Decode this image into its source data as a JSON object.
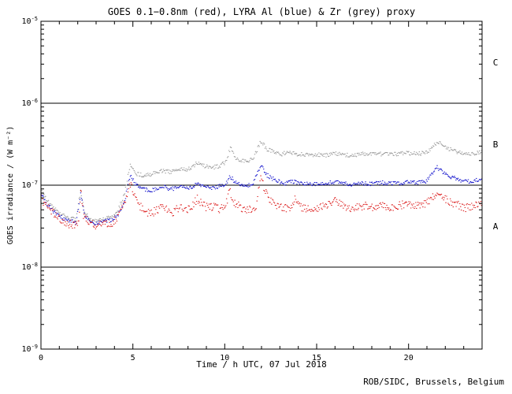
{
  "footer": {
    "credit": "ROB/SIDC, Brussels, Belgium"
  },
  "chart_data": {
    "type": "scatter",
    "title": "GOES 0.1−0.8nm (red), LYRA Al (blue) & Zr (grey) proxy",
    "xlabel": "Time / h UTC, 07 Jul 2018",
    "ylabel": "GOES irradiance / (W m⁻²)",
    "xlim": [
      0,
      24
    ],
    "ylim": [
      1e-09,
      1e-05
    ],
    "x_ticks": [
      0,
      5,
      10,
      15,
      20
    ],
    "y_tick_exponents": [
      -5,
      -6,
      -7,
      -8,
      -9
    ],
    "grid": "off",
    "legend": "in-title",
    "flare_class_boundaries": [
      1e-06,
      1e-07,
      1e-08
    ],
    "flare_classes": [
      {
        "label": "C",
        "range": [
          1e-06,
          1e-05
        ]
      },
      {
        "label": "B",
        "range": [
          1e-07,
          1e-06
        ]
      },
      {
        "label": "A",
        "range": [
          1e-08,
          1e-07
        ]
      }
    ],
    "series": [
      {
        "id": "goes-red",
        "name": "GOES 0.1-0.8nm",
        "color": "#dc1c1c",
        "points": [
          [
            0,
            6.8e-08
          ],
          [
            0.4,
            5.2e-08
          ],
          [
            0.9,
            4e-08
          ],
          [
            1.4,
            3.4e-08
          ],
          [
            1.9,
            3.2e-08
          ],
          [
            2.05,
            3.6e-08
          ],
          [
            2.15,
            9.5e-08
          ],
          [
            2.3,
            4.4e-08
          ],
          [
            2.6,
            3.4e-08
          ],
          [
            3.0,
            3.2e-08
          ],
          [
            3.4,
            3.5e-08
          ],
          [
            3.8,
            3.4e-08
          ],
          [
            4.2,
            4e-08
          ],
          [
            4.55,
            6e-08
          ],
          [
            4.85,
            1.05e-07
          ],
          [
            5.05,
            7.8e-08
          ],
          [
            5.3,
            5.8e-08
          ],
          [
            5.6,
            4.8e-08
          ],
          [
            6.0,
            4.5e-08
          ],
          [
            6.4,
            5.2e-08
          ],
          [
            6.65,
            5.7e-08
          ],
          [
            6.9,
            5e-08
          ],
          [
            7.2,
            4.7e-08
          ],
          [
            7.5,
            5.4e-08
          ],
          [
            7.8,
            5e-08
          ],
          [
            8.1,
            5.2e-08
          ],
          [
            8.5,
            6.8e-08
          ],
          [
            8.8,
            5.8e-08
          ],
          [
            9.1,
            5.2e-08
          ],
          [
            9.4,
            5.6e-08
          ],
          [
            9.7,
            5.1e-08
          ],
          [
            10.05,
            5.6e-08
          ],
          [
            10.25,
            8.8e-08
          ],
          [
            10.5,
            6.2e-08
          ],
          [
            10.9,
            5.2e-08
          ],
          [
            11.3,
            5e-08
          ],
          [
            11.7,
            5.6e-08
          ],
          [
            11.95,
            1.25e-07
          ],
          [
            12.2,
            8.2e-08
          ],
          [
            12.5,
            6.5e-08
          ],
          [
            12.9,
            5.6e-08
          ],
          [
            13.3,
            5.2e-08
          ],
          [
            13.65,
            5.5e-08
          ],
          [
            13.85,
            7e-08
          ],
          [
            14.1,
            5.5e-08
          ],
          [
            14.6,
            5e-08
          ],
          [
            15.1,
            5.3e-08
          ],
          [
            15.6,
            5.6e-08
          ],
          [
            16.0,
            6.4e-08
          ],
          [
            16.4,
            5.6e-08
          ],
          [
            17.0,
            5.2e-08
          ],
          [
            17.5,
            5.6e-08
          ],
          [
            18.0,
            5.4e-08
          ],
          [
            18.5,
            5.8e-08
          ],
          [
            19.0,
            5.4e-08
          ],
          [
            19.5,
            5.7e-08
          ],
          [
            20.0,
            5.9e-08
          ],
          [
            20.5,
            5.6e-08
          ],
          [
            21.0,
            6.1e-08
          ],
          [
            21.5,
            7.8e-08
          ],
          [
            21.9,
            6.9e-08
          ],
          [
            22.3,
            6.2e-08
          ],
          [
            22.7,
            5.7e-08
          ],
          [
            23.1,
            5.3e-08
          ],
          [
            23.5,
            5.6e-08
          ],
          [
            24,
            6.2e-08
          ]
        ]
      },
      {
        "id": "lyra-al-blue",
        "name": "LYRA Al proxy",
        "color": "#1414cc",
        "points": [
          [
            0,
            7.6e-08
          ],
          [
            0.4,
            5.6e-08
          ],
          [
            0.9,
            4.3e-08
          ],
          [
            1.4,
            3.7e-08
          ],
          [
            1.9,
            3.5e-08
          ],
          [
            2.15,
            8e-08
          ],
          [
            2.35,
            4.4e-08
          ],
          [
            2.7,
            3.6e-08
          ],
          [
            3.1,
            3.4e-08
          ],
          [
            3.5,
            3.7e-08
          ],
          [
            3.9,
            3.8e-08
          ],
          [
            4.2,
            4.4e-08
          ],
          [
            4.55,
            6.5e-08
          ],
          [
            4.85,
            1.35e-07
          ],
          [
            5.1,
            1.05e-07
          ],
          [
            5.4,
            9.2e-08
          ],
          [
            5.8,
            8.7e-08
          ],
          [
            6.2,
            8.8e-08
          ],
          [
            6.6,
            9.6e-08
          ],
          [
            7.0,
            9e-08
          ],
          [
            7.4,
            9.2e-08
          ],
          [
            7.8,
            9.6e-08
          ],
          [
            8.2,
            9.3e-08
          ],
          [
            8.5,
            1.06e-07
          ],
          [
            8.8,
            9.9e-08
          ],
          [
            9.2,
            9.3e-08
          ],
          [
            9.6,
            9.6e-08
          ],
          [
            10.05,
            1e-07
          ],
          [
            10.25,
            1.32e-07
          ],
          [
            10.6,
            1.06e-07
          ],
          [
            11.0,
            9.9e-08
          ],
          [
            11.5,
            1.01e-07
          ],
          [
            11.95,
            1.75e-07
          ],
          [
            12.3,
            1.32e-07
          ],
          [
            12.7,
            1.16e-07
          ],
          [
            13.2,
            1.06e-07
          ],
          [
            13.8,
            1.1e-07
          ],
          [
            14.3,
            1.05e-07
          ],
          [
            15.0,
            1.02e-07
          ],
          [
            15.5,
            1.05e-07
          ],
          [
            16.0,
            1.1e-07
          ],
          [
            16.5,
            1.05e-07
          ],
          [
            17.0,
            1.02e-07
          ],
          [
            17.5,
            1.05e-07
          ],
          [
            18.0,
            1.04e-07
          ],
          [
            18.5,
            1.08e-07
          ],
          [
            19.0,
            1.05e-07
          ],
          [
            19.5,
            1.06e-07
          ],
          [
            20.0,
            1.1e-07
          ],
          [
            20.5,
            1.08e-07
          ],
          [
            21.0,
            1.13e-07
          ],
          [
            21.55,
            1.65e-07
          ],
          [
            21.9,
            1.42e-07
          ],
          [
            22.3,
            1.26e-07
          ],
          [
            22.8,
            1.15e-07
          ],
          [
            23.2,
            1.11e-07
          ],
          [
            23.6,
            1.15e-07
          ],
          [
            24,
            1.2e-07
          ]
        ]
      },
      {
        "id": "lyra-zr-grey",
        "name": "LYRA Zr proxy",
        "color": "#9a9a9a",
        "points": [
          [
            0,
            8.6e-08
          ],
          [
            0.4,
            6.2e-08
          ],
          [
            0.9,
            4.7e-08
          ],
          [
            1.4,
            4e-08
          ],
          [
            1.9,
            3.8e-08
          ],
          [
            2.15,
            8.6e-08
          ],
          [
            2.35,
            4.6e-08
          ],
          [
            2.7,
            3.8e-08
          ],
          [
            3.1,
            3.7e-08
          ],
          [
            3.5,
            3.9e-08
          ],
          [
            3.9,
            4.2e-08
          ],
          [
            4.2,
            5e-08
          ],
          [
            4.55,
            8e-08
          ],
          [
            4.85,
            1.85e-07
          ],
          [
            5.1,
            1.4e-07
          ],
          [
            5.5,
            1.32e-07
          ],
          [
            6.0,
            1.36e-07
          ],
          [
            6.5,
            1.5e-07
          ],
          [
            7.0,
            1.45e-07
          ],
          [
            7.5,
            1.55e-07
          ],
          [
            8.0,
            1.56e-07
          ],
          [
            8.5,
            1.85e-07
          ],
          [
            8.9,
            1.7e-07
          ],
          [
            9.3,
            1.65e-07
          ],
          [
            9.7,
            1.72e-07
          ],
          [
            10.05,
            1.9e-07
          ],
          [
            10.3,
            2.9e-07
          ],
          [
            10.6,
            2.15e-07
          ],
          [
            11.0,
            1.98e-07
          ],
          [
            11.5,
            2.05e-07
          ],
          [
            11.95,
            3.4e-07
          ],
          [
            12.3,
            2.75e-07
          ],
          [
            12.7,
            2.5e-07
          ],
          [
            13.1,
            2.4e-07
          ],
          [
            13.5,
            2.52e-07
          ],
          [
            13.9,
            2.4e-07
          ],
          [
            14.4,
            2.32e-07
          ],
          [
            15.0,
            2.38e-07
          ],
          [
            15.5,
            2.3e-07
          ],
          [
            16.0,
            2.42e-07
          ],
          [
            16.5,
            2.36e-07
          ],
          [
            17.0,
            2.3e-07
          ],
          [
            17.5,
            2.42e-07
          ],
          [
            18.0,
            2.36e-07
          ],
          [
            18.5,
            2.4e-07
          ],
          [
            19.0,
            2.35e-07
          ],
          [
            19.5,
            2.42e-07
          ],
          [
            20.0,
            2.46e-07
          ],
          [
            20.5,
            2.4e-07
          ],
          [
            21.0,
            2.52e-07
          ],
          [
            21.6,
            3.4e-07
          ],
          [
            22.0,
            2.92e-07
          ],
          [
            22.4,
            2.62e-07
          ],
          [
            22.9,
            2.46e-07
          ],
          [
            23.3,
            2.4e-07
          ],
          [
            23.7,
            2.5e-07
          ],
          [
            24,
            2.56e-07
          ]
        ]
      }
    ]
  }
}
